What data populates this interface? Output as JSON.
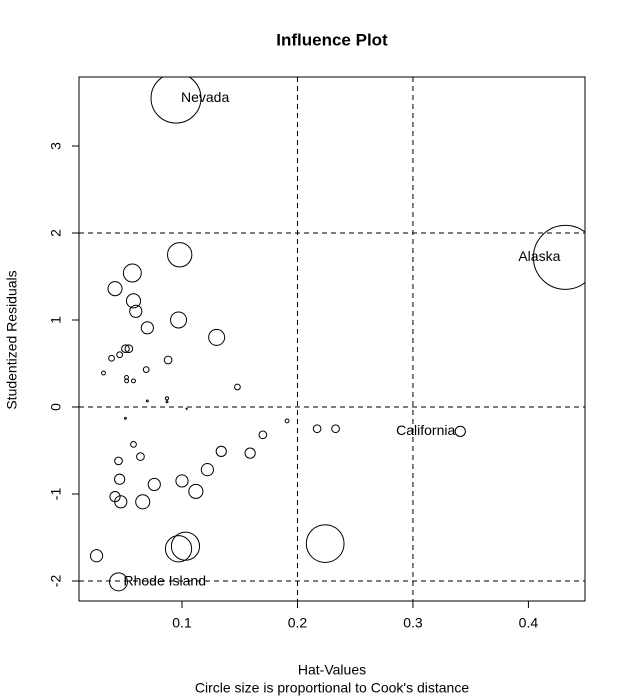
{
  "chart_data": {
    "type": "scatter",
    "title": "Influence Plot",
    "xlabel": "Hat-Values",
    "subtitle": "Circle size is proportional to Cook's distance",
    "ylabel": "Studentized Residuals",
    "xlim": [
      0.0108,
      0.449
    ],
    "ylim": [
      -2.23,
      3.793
    ],
    "xticks": [
      0.1,
      0.2,
      0.3,
      0.4
    ],
    "yticks": [
      -2,
      -1,
      0,
      1,
      2,
      3
    ],
    "hlines": [
      -2,
      0,
      2
    ],
    "vlines": [
      0.2,
      0.3
    ],
    "x": [
      0.0948,
      0.432,
      0.341,
      0.045,
      0.098,
      0.057,
      0.042,
      0.058,
      0.06,
      0.097,
      0.07,
      0.13,
      0.051,
      0.054,
      0.046,
      0.039,
      0.088,
      0.069,
      0.032,
      0.052,
      0.058,
      0.052,
      0.148,
      0.087,
      0.087,
      0.07,
      0.104,
      0.051,
      0.191,
      0.217,
      0.233,
      0.17,
      0.058,
      0.134,
      0.159,
      0.064,
      0.045,
      0.122,
      0.046,
      0.1,
      0.076,
      0.112,
      0.042,
      0.047,
      0.066,
      0.103,
      0.097,
      0.224,
      0.026
    ],
    "values": [
      3.55,
      1.72,
      -0.28,
      -2.01,
      1.75,
      1.54,
      1.36,
      1.22,
      1.1,
      1.0,
      0.91,
      0.8,
      0.67,
      0.67,
      0.6,
      0.56,
      0.54,
      0.43,
      0.39,
      0.34,
      0.3,
      0.3,
      0.23,
      0.1,
      0.06,
      0.07,
      -0.02,
      -0.13,
      -0.16,
      -0.25,
      -0.25,
      -0.32,
      -0.43,
      -0.51,
      -0.53,
      -0.57,
      -0.62,
      -0.72,
      -0.83,
      -0.85,
      -0.89,
      -0.97,
      -1.03,
      -1.09,
      -1.09,
      -1.6,
      -1.63,
      -1.57,
      -1.71
    ],
    "sizes": [
      0.78,
      1.0,
      0.16,
      0.28,
      0.38,
      0.28,
      0.22,
      0.22,
      0.19,
      0.25,
      0.19,
      0.25,
      0.12,
      0.12,
      0.09,
      0.09,
      0.12,
      0.09,
      0.06,
      0.06,
      0.06,
      0.06,
      0.09,
      0.05,
      0.03,
      0.03,
      0.02,
      0.03,
      0.06,
      0.12,
      0.12,
      0.12,
      0.09,
      0.16,
      0.16,
      0.12,
      0.12,
      0.19,
      0.16,
      0.19,
      0.19,
      0.22,
      0.16,
      0.19,
      0.22,
      0.44,
      0.41,
      0.59,
      0.19
    ],
    "point_labels": [
      "Nevada",
      "Alaska",
      "California",
      "Rhode Island",
      null,
      null,
      null,
      null,
      null,
      null,
      null,
      null,
      null,
      null,
      null,
      null,
      null,
      null,
      null,
      null,
      null,
      null,
      null,
      null,
      null,
      null,
      null,
      null,
      null,
      null,
      null,
      null,
      null,
      null,
      null,
      null,
      null,
      null,
      null,
      null,
      null,
      null,
      null,
      null,
      null,
      null,
      null,
      null,
      null
    ],
    "color": "#000000"
  }
}
